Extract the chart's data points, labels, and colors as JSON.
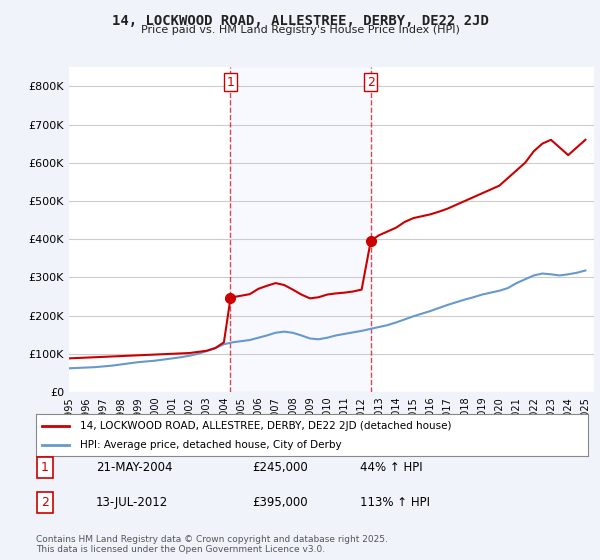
{
  "title": "14, LOCKWOOD ROAD, ALLESTREE, DERBY, DE22 2JD",
  "subtitle": "Price paid vs. HM Land Registry's House Price Index (HPI)",
  "red_label": "14, LOCKWOOD ROAD, ALLESTREE, DERBY, DE22 2JD (detached house)",
  "blue_label": "HPI: Average price, detached house, City of Derby",
  "footnote": "Contains HM Land Registry data © Crown copyright and database right 2025.\nThis data is licensed under the Open Government Licence v3.0.",
  "table_rows": [
    {
      "num": "1",
      "date": "21-MAY-2004",
      "price": "£245,000",
      "hpi": "44% ↑ HPI"
    },
    {
      "num": "2",
      "date": "13-JUL-2012",
      "price": "£395,000",
      "hpi": "113% ↑ HPI"
    }
  ],
  "marker1_date": 2004.38,
  "marker1_price": 245000,
  "marker2_date": 2012.53,
  "marker2_price": 395000,
  "vline1_date": 2004.38,
  "vline2_date": 2012.53,
  "xlim": [
    1995.0,
    2025.5
  ],
  "ylim": [
    0,
    850000
  ],
  "yticks": [
    0,
    100000,
    200000,
    300000,
    400000,
    500000,
    600000,
    700000,
    800000
  ],
  "background_color": "#f0f4fa",
  "plot_bg_color": "#ffffff",
  "grid_color": "#cccccc",
  "red_color": "#cc0000",
  "blue_color": "#6699cc",
  "title_color": "#222222",
  "red_line_data": {
    "years": [
      1995.0,
      1995.5,
      1996.0,
      1996.5,
      1997.0,
      1997.5,
      1998.0,
      1998.5,
      1999.0,
      1999.5,
      2000.0,
      2000.5,
      2001.0,
      2001.5,
      2002.0,
      2002.5,
      2003.0,
      2003.5,
      2004.0,
      2004.38,
      2004.5,
      2005.0,
      2005.5,
      2006.0,
      2006.5,
      2007.0,
      2007.5,
      2008.0,
      2008.5,
      2009.0,
      2009.5,
      2010.0,
      2010.5,
      2011.0,
      2011.5,
      2012.0,
      2012.53,
      2012.6,
      2013.0,
      2013.5,
      2014.0,
      2014.5,
      2015.0,
      2015.5,
      2016.0,
      2016.5,
      2017.0,
      2017.5,
      2018.0,
      2018.5,
      2019.0,
      2019.5,
      2020.0,
      2020.5,
      2021.0,
      2021.5,
      2022.0,
      2022.5,
      2023.0,
      2023.5,
      2024.0,
      2024.5,
      2025.0
    ],
    "prices": [
      88000,
      89000,
      90000,
      91000,
      92000,
      93000,
      94000,
      95000,
      96000,
      97000,
      98000,
      99000,
      100000,
      101000,
      102000,
      105000,
      108000,
      115000,
      130000,
      245000,
      248000,
      252000,
      256000,
      270000,
      278000,
      285000,
      280000,
      268000,
      255000,
      245000,
      248000,
      255000,
      258000,
      260000,
      263000,
      268000,
      395000,
      398000,
      410000,
      420000,
      430000,
      445000,
      455000,
      460000,
      465000,
      472000,
      480000,
      490000,
      500000,
      510000,
      520000,
      530000,
      540000,
      560000,
      580000,
      600000,
      630000,
      650000,
      660000,
      640000,
      620000,
      640000,
      660000
    ]
  },
  "blue_line_data": {
    "years": [
      1995.0,
      1995.5,
      1996.0,
      1996.5,
      1997.0,
      1997.5,
      1998.0,
      1998.5,
      1999.0,
      1999.5,
      2000.0,
      2000.5,
      2001.0,
      2001.5,
      2002.0,
      2002.5,
      2003.0,
      2003.5,
      2004.0,
      2004.5,
      2005.0,
      2005.5,
      2006.0,
      2006.5,
      2007.0,
      2007.5,
      2008.0,
      2008.5,
      2009.0,
      2009.5,
      2010.0,
      2010.5,
      2011.0,
      2011.5,
      2012.0,
      2012.5,
      2013.0,
      2013.5,
      2014.0,
      2014.5,
      2015.0,
      2015.5,
      2016.0,
      2016.5,
      2017.0,
      2017.5,
      2018.0,
      2018.5,
      2019.0,
      2019.5,
      2020.0,
      2020.5,
      2021.0,
      2021.5,
      2022.0,
      2022.5,
      2023.0,
      2023.5,
      2024.0,
      2024.5,
      2025.0
    ],
    "prices": [
      62000,
      63000,
      64000,
      65000,
      67000,
      69000,
      72000,
      75000,
      78000,
      80000,
      82000,
      85000,
      88000,
      91000,
      95000,
      100000,
      107000,
      115000,
      125000,
      130000,
      133000,
      136000,
      142000,
      148000,
      155000,
      158000,
      155000,
      148000,
      140000,
      138000,
      142000,
      148000,
      152000,
      156000,
      160000,
      165000,
      170000,
      175000,
      182000,
      190000,
      198000,
      205000,
      212000,
      220000,
      228000,
      235000,
      242000,
      248000,
      255000,
      260000,
      265000,
      272000,
      285000,
      295000,
      305000,
      310000,
      308000,
      305000,
      308000,
      312000,
      318000
    ]
  }
}
